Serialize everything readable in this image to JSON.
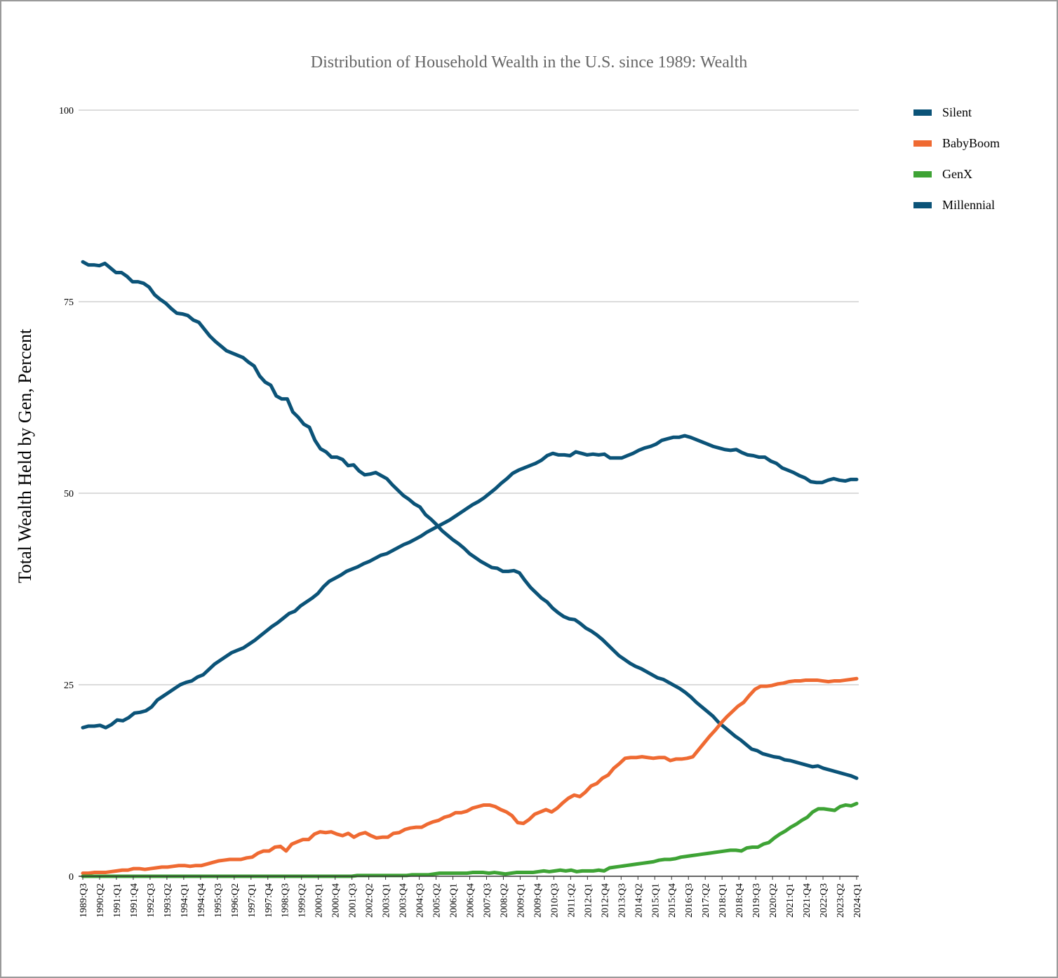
{
  "chart_data": {
    "type": "line",
    "title": "Distribution of Household Wealth in the U.S. since 1989: Wealth",
    "xlabel": "",
    "ylabel": "Total Wealth Held by Gen, Percent",
    "ylim": [
      0,
      100
    ],
    "y_ticks": [
      0,
      25,
      50,
      75,
      100
    ],
    "grid": true,
    "legend_position": "top-right",
    "x_tick_labels": [
      "1989:Q3",
      "1990:Q2",
      "1991:Q1",
      "1991:Q4",
      "1992:Q3",
      "1993:Q2",
      "1994:Q1",
      "1994:Q4",
      "1995:Q3",
      "1996:Q2",
      "1997:Q1",
      "1997:Q4",
      "1998:Q3",
      "1999:Q2",
      "2000:Q1",
      "2000:Q4",
      "2001:Q3",
      "2002:Q2",
      "2003:Q1",
      "2003:Q4",
      "2004:Q3",
      "2005:Q2",
      "2006:Q1",
      "2006:Q4",
      "2007:Q3",
      "2008:Q2",
      "2009:Q1",
      "2009:Q4",
      "2010:Q3",
      "2011:Q2",
      "2012:Q1",
      "2012:Q4",
      "2013:Q3",
      "2014:Q2",
      "2015:Q1",
      "2015:Q4",
      "2016:Q3",
      "2017:Q2",
      "2018:Q1",
      "2018:Q4",
      "2019:Q3",
      "2020:Q2",
      "2021:Q1",
      "2021:Q4",
      "2022:Q3",
      "2023:Q2",
      "2024:Q1"
    ],
    "x_start": "1989:Q3",
    "x_end": "2024:Q1",
    "series": [
      {
        "name": "Silent",
        "color": "#0b5378",
        "values": [
          80.2,
          79.8,
          79.8,
          79.7,
          80.0,
          79.4,
          78.8,
          78.8,
          78.3,
          77.6,
          77.6,
          77.4,
          76.9,
          75.9,
          75.3,
          74.8,
          74.1,
          73.5,
          73.4,
          73.2,
          72.6,
          72.3,
          71.4,
          70.5,
          69.8,
          69.2,
          68.6,
          68.3,
          68.0,
          67.7,
          67.1,
          66.6,
          65.3,
          64.5,
          64.1,
          62.7,
          62.3,
          62.3,
          60.6,
          59.9,
          59.0,
          58.6,
          56.9,
          55.8,
          55.4,
          54.7,
          54.7,
          54.4,
          53.6,
          53.7,
          52.9,
          52.4,
          52.5,
          52.7,
          52.3,
          51.9,
          51.1,
          50.4,
          49.7,
          49.2,
          48.6,
          48.2,
          47.2,
          46.6,
          45.9,
          45.1,
          44.5,
          43.9,
          43.4,
          42.8,
          42.1,
          41.6,
          41.1,
          40.7,
          40.3,
          40.2,
          39.8,
          39.8,
          39.9,
          39.6,
          38.6,
          37.7,
          37.0,
          36.3,
          35.8,
          35.0,
          34.4,
          33.9,
          33.6,
          33.5,
          33.0,
          32.4,
          32.0,
          31.5,
          30.9,
          30.2,
          29.5,
          28.8,
          28.3,
          27.8,
          27.4,
          27.1,
          26.7,
          26.3,
          25.9,
          25.7,
          25.3,
          24.9,
          24.5,
          24.0,
          23.4,
          22.7,
          22.1,
          21.5,
          20.9,
          20.1,
          19.5,
          18.9,
          18.3,
          17.8,
          17.2,
          16.6,
          16.4,
          16.0,
          15.8,
          15.6,
          15.5,
          15.2,
          15.1,
          14.9,
          14.7,
          14.5,
          14.3,
          14.4,
          14.1,
          13.9,
          13.7,
          13.5,
          13.3,
          13.1,
          12.8
        ]
      },
      {
        "name": "BabyBoom",
        "color": "#ef6a32",
        "values": [
          0.4,
          0.4,
          0.5,
          0.5,
          0.5,
          0.6,
          0.7,
          0.8,
          0.8,
          1.0,
          1.0,
          0.9,
          1.0,
          1.1,
          1.2,
          1.2,
          1.3,
          1.4,
          1.4,
          1.3,
          1.4,
          1.4,
          1.6,
          1.8,
          2.0,
          2.1,
          2.2,
          2.2,
          2.2,
          2.4,
          2.5,
          3.0,
          3.3,
          3.3,
          3.8,
          3.9,
          3.3,
          4.2,
          4.5,
          4.8,
          4.8,
          5.5,
          5.8,
          5.7,
          5.8,
          5.5,
          5.3,
          5.6,
          5.1,
          5.5,
          5.7,
          5.3,
          5.0,
          5.1,
          5.1,
          5.6,
          5.7,
          6.1,
          6.3,
          6.4,
          6.4,
          6.8,
          7.1,
          7.3,
          7.7,
          7.9,
          8.3,
          8.3,
          8.5,
          8.9,
          9.1,
          9.3,
          9.3,
          9.1,
          8.7,
          8.4,
          7.9,
          7.0,
          6.9,
          7.4,
          8.1,
          8.4,
          8.7,
          8.4,
          8.9,
          9.6,
          10.2,
          10.6,
          10.4,
          11.0,
          11.8,
          12.1,
          12.8,
          13.2,
          14.1,
          14.7,
          15.4,
          15.5,
          15.5,
          15.6,
          15.5,
          15.4,
          15.5,
          15.5,
          15.1,
          15.3,
          15.3,
          15.4,
          15.6,
          16.5,
          17.4,
          18.3,
          19.1,
          20.0,
          20.8,
          21.5,
          22.2,
          22.7,
          23.6,
          24.4,
          24.8,
          24.8,
          24.9,
          25.1,
          25.2,
          25.4,
          25.5,
          25.5,
          25.6,
          25.6,
          25.6,
          25.5,
          25.4,
          25.5,
          25.5,
          25.6,
          25.7,
          25.8
        ]
      },
      {
        "name": "GenX",
        "color": "#3ea335",
        "values": [
          0,
          0,
          0,
          0,
          0,
          0,
          0,
          0,
          0,
          0,
          0,
          0,
          0,
          0,
          0,
          0,
          0,
          0,
          0,
          0,
          0,
          0,
          0,
          0,
          0,
          0,
          0,
          0,
          0,
          0,
          0,
          0,
          0,
          0,
          0,
          0,
          0,
          0,
          0,
          0,
          0,
          0,
          0,
          0,
          0,
          0,
          0,
          0,
          0,
          0,
          0.1,
          0.1,
          0.1,
          0.1,
          0.1,
          0.1,
          0.1,
          0.1,
          0.1,
          0.1,
          0.2,
          0.2,
          0.2,
          0.2,
          0.3,
          0.4,
          0.4,
          0.4,
          0.4,
          0.4,
          0.4,
          0.5,
          0.5,
          0.5,
          0.4,
          0.5,
          0.4,
          0.3,
          0.4,
          0.5,
          0.5,
          0.5,
          0.5,
          0.6,
          0.7,
          0.6,
          0.7,
          0.8,
          0.7,
          0.8,
          0.6,
          0.7,
          0.7,
          0.7,
          0.8,
          0.7,
          1.1,
          1.2,
          1.3,
          1.4,
          1.5,
          1.6,
          1.7,
          1.8,
          1.9,
          2.1,
          2.2,
          2.2,
          2.3,
          2.5,
          2.6,
          2.7,
          2.8,
          2.9,
          3.0,
          3.1,
          3.2,
          3.3,
          3.4,
          3.4,
          3.3,
          3.7,
          3.8,
          3.8,
          4.2,
          4.4,
          5.0,
          5.5,
          5.9,
          6.4,
          6.8,
          7.3,
          7.7,
          8.4,
          8.8,
          8.8,
          8.7,
          8.6,
          9.1,
          9.3,
          9.2,
          9.5
        ]
      },
      {
        "name": "Millennial",
        "color": "#0b5378",
        "values": [
          19.4,
          19.6,
          19.6,
          19.7,
          19.4,
          19.8,
          20.4,
          20.3,
          20.7,
          21.3,
          21.4,
          21.6,
          22.1,
          23.0,
          23.5,
          24.0,
          24.5,
          25.0,
          25.3,
          25.5,
          26.0,
          26.3,
          27.0,
          27.7,
          28.2,
          28.7,
          29.2,
          29.5,
          29.8,
          30.3,
          30.8,
          31.4,
          32.0,
          32.6,
          33.1,
          33.7,
          34.3,
          34.6,
          35.3,
          35.8,
          36.3,
          36.9,
          37.8,
          38.5,
          38.9,
          39.3,
          39.8,
          40.1,
          40.4,
          40.8,
          41.1,
          41.5,
          41.9,
          42.1,
          42.5,
          42.9,
          43.3,
          43.6,
          44.0,
          44.4,
          44.9,
          45.3,
          45.7,
          46.1,
          46.5,
          47.0,
          47.5,
          48.0,
          48.5,
          48.9,
          49.4,
          50.0,
          50.6,
          51.3,
          51.9,
          52.6,
          53.0,
          53.3,
          53.6,
          53.9,
          54.3,
          54.9,
          55.2,
          55.0,
          55.0,
          54.9,
          55.4,
          55.2,
          55.0,
          55.1,
          55.0,
          55.1,
          54.6,
          54.6,
          54.6,
          54.9,
          55.2,
          55.6,
          55.9,
          56.1,
          56.4,
          56.9,
          57.1,
          57.3,
          57.3,
          57.5,
          57.3,
          57.0,
          56.7,
          56.4,
          56.1,
          55.9,
          55.7,
          55.6,
          55.7,
          55.3,
          55.0,
          54.9,
          54.7,
          54.7,
          54.2,
          53.9,
          53.3,
          53.0,
          52.7,
          52.3,
          52.0,
          51.5,
          51.4,
          51.4,
          51.7,
          51.9,
          51.7,
          51.6,
          51.8,
          51.8
        ]
      }
    ]
  }
}
